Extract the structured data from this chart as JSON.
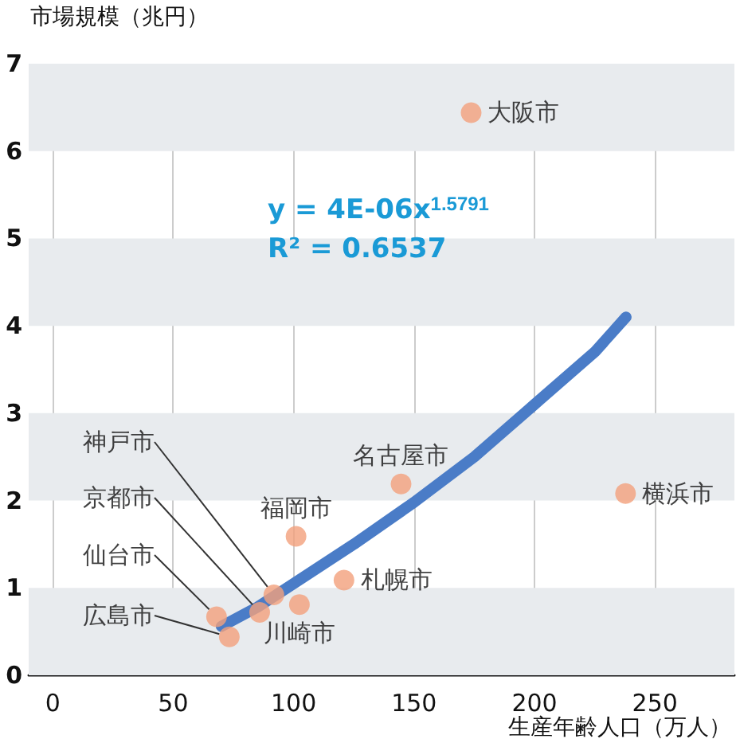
{
  "chart_data": {
    "type": "scatter",
    "ylabel": "市場規模（兆円）",
    "xlabel": "生産年齢人口（万人）",
    "xlim": [
      -10,
      283
    ],
    "xticks": [
      0,
      50,
      100,
      150,
      200,
      250
    ],
    "ylim": [
      0,
      7
    ],
    "yticks": [
      0,
      1,
      2,
      3,
      4,
      5,
      6,
      7
    ],
    "grid": "x",
    "marker": "circle",
    "bands": [
      {
        "axis": "y",
        "from": 0,
        "to": 1,
        "color": "#e8ebee"
      },
      {
        "axis": "y",
        "from": 2,
        "to": 3,
        "color": "#e8ebee"
      },
      {
        "axis": "y",
        "from": 4,
        "to": 5,
        "color": "#e8ebee"
      },
      {
        "axis": "y",
        "from": 6,
        "to": 7,
        "color": "#e8ebee"
      }
    ],
    "series": [
      {
        "color": "#f2a07c",
        "x": [
          173.7,
          144.6,
          237.8,
          101,
          120.9,
          91.8,
          102.4,
          85.9,
          68,
          73.3
        ],
        "values": [
          6.44,
          2.19,
          2.08,
          1.59,
          1.09,
          0.92,
          0.81,
          0.72,
          0.67,
          0.44
        ]
      },
      {
        "type": "line",
        "color": "#4a7cc7",
        "marker": "none",
        "x": [
          70,
          85,
          100,
          125,
          150,
          175,
          200,
          225,
          238
        ],
        "values": [
          0.56,
          0.78,
          1.05,
          1.5,
          1.98,
          2.5,
          3.1,
          3.7,
          4.1
        ]
      }
    ],
    "annotations": [
      {
        "text": "大阪市",
        "x": 173.7,
        "y": 6.44
      },
      {
        "text": "名古屋市",
        "x": 144.6,
        "y": 2.19
      },
      {
        "text": "横浜市",
        "x": 237.8,
        "y": 2.08
      },
      {
        "text": "福岡市",
        "x": 101,
        "y": 1.59
      },
      {
        "text": "札幌市",
        "x": 120.9,
        "y": 1.09
      },
      {
        "text": "神戸市",
        "x": 91.8,
        "y": 0.92
      },
      {
        "text": "川崎市",
        "x": 102.4,
        "y": 0.81
      },
      {
        "text": "京都市",
        "x": 85.9,
        "y": 0.72
      },
      {
        "text": "仙台市",
        "x": 68,
        "y": 0.67
      },
      {
        "text": "広島市",
        "x": 73.3,
        "y": 0.44
      },
      "y = 4E-06x$^{1.5791}$",
      "R² = 0.6537"
    ]
  }
}
